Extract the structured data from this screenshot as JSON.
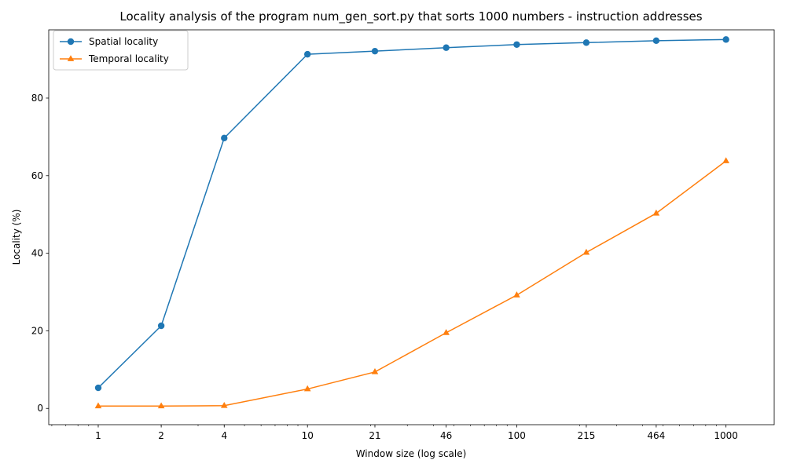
{
  "chart_data": {
    "type": "line",
    "title": "Locality analysis of the program num_gen_sort.py that sorts 1000 numbers - instruction addresses",
    "xlabel": "Window size (log scale)",
    "ylabel": "Locality (%)",
    "x_scale": "log",
    "x": [
      1,
      2,
      4,
      10,
      21,
      46,
      100,
      215,
      464,
      1000
    ],
    "x_tick_labels": [
      "1",
      "2",
      "4",
      "10",
      "21",
      "46",
      "100",
      "215",
      "464",
      "1000"
    ],
    "y_ticks": [
      0,
      20,
      40,
      60,
      80
    ],
    "y_tick_labels": [
      "0",
      "20",
      "40",
      "60",
      "80"
    ],
    "xlim": [
      0.58,
      1700
    ],
    "ylim": [
      -4.2,
      97.6
    ],
    "grid": false,
    "legend_position": "top-left",
    "series": [
      {
        "name": "Spatial locality",
        "color": "#1f77b4",
        "marker": "circle",
        "values": [
          5.3,
          21.3,
          69.7,
          91.3,
          92.1,
          93.0,
          93.8,
          94.3,
          94.8,
          95.1
        ]
      },
      {
        "name": "Temporal locality",
        "color": "#ff7f0e",
        "marker": "triangle",
        "values": [
          0.6,
          0.6,
          0.7,
          5.0,
          9.4,
          19.5,
          29.2,
          40.2,
          50.3,
          63.8
        ]
      }
    ]
  }
}
